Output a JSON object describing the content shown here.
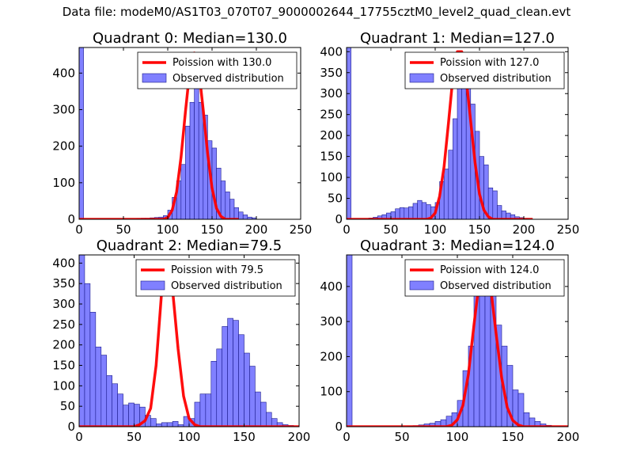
{
  "figure_title": "Data file: modeM0/AS1T03_070T07_9000002644_17755cztM0_level2_quad_clean.evt",
  "colors": {
    "bars": "#8080ff",
    "bar_edge": "#1a1a8c",
    "curve": "#ff0000",
    "axes": "#000000"
  },
  "chart_data": [
    {
      "type": "bar",
      "title": "Quadrant 0: Median=130.0",
      "xlim": [
        0,
        250
      ],
      "ylim": [
        0,
        470
      ],
      "xticks": [
        0,
        50,
        100,
        150,
        200,
        250
      ],
      "yticks": [
        0,
        100,
        200,
        300,
        400
      ],
      "bin_width": 5,
      "legend": {
        "position": "top-right",
        "curve_label": "Poission with 130.0",
        "bars_label": "Observed distribution"
      },
      "hist": [
        {
          "x": 0,
          "v": 470
        },
        {
          "x": 65,
          "v": 2
        },
        {
          "x": 70,
          "v": 3
        },
        {
          "x": 75,
          "v": 3
        },
        {
          "x": 80,
          "v": 4
        },
        {
          "x": 85,
          "v": 5
        },
        {
          "x": 90,
          "v": 6
        },
        {
          "x": 95,
          "v": 10
        },
        {
          "x": 100,
          "v": 25
        },
        {
          "x": 105,
          "v": 60
        },
        {
          "x": 110,
          "v": 105
        },
        {
          "x": 115,
          "v": 150
        },
        {
          "x": 120,
          "v": 255
        },
        {
          "x": 125,
          "v": 320
        },
        {
          "x": 130,
          "v": 440
        },
        {
          "x": 135,
          "v": 320
        },
        {
          "x": 140,
          "v": 285
        },
        {
          "x": 145,
          "v": 215
        },
        {
          "x": 150,
          "v": 195
        },
        {
          "x": 155,
          "v": 140
        },
        {
          "x": 160,
          "v": 105
        },
        {
          "x": 165,
          "v": 75
        },
        {
          "x": 170,
          "v": 55
        },
        {
          "x": 175,
          "v": 32
        },
        {
          "x": 180,
          "v": 20
        },
        {
          "x": 185,
          "v": 12
        },
        {
          "x": 190,
          "v": 6
        },
        {
          "x": 195,
          "v": 4
        }
      ],
      "curve": [
        [
          0,
          0
        ],
        [
          95,
          0
        ],
        [
          100,
          5
        ],
        [
          105,
          25
        ],
        [
          110,
          75
        ],
        [
          115,
          170
        ],
        [
          120,
          295
        ],
        [
          125,
          410
        ],
        [
          130,
          455
        ],
        [
          135,
          410
        ],
        [
          140,
          300
        ],
        [
          145,
          180
        ],
        [
          150,
          85
        ],
        [
          155,
          30
        ],
        [
          160,
          8
        ],
        [
          165,
          0
        ],
        [
          180,
          0
        ]
      ]
    },
    {
      "type": "bar",
      "title": "Quadrant 1: Median=127.0",
      "xlim": [
        0,
        250
      ],
      "ylim": [
        0,
        410
      ],
      "xticks": [
        0,
        50,
        100,
        150,
        200,
        250
      ],
      "yticks": [
        0,
        50,
        100,
        150,
        200,
        250,
        300,
        350,
        400
      ],
      "bin_width": 5,
      "legend": {
        "position": "top-right",
        "curve_label": "Poission with 127.0",
        "bars_label": "Observed distribution"
      },
      "hist": [
        {
          "x": 0,
          "v": 410
        },
        {
          "x": 25,
          "v": 3
        },
        {
          "x": 30,
          "v": 5
        },
        {
          "x": 35,
          "v": 8
        },
        {
          "x": 40,
          "v": 11
        },
        {
          "x": 45,
          "v": 15
        },
        {
          "x": 50,
          "v": 18
        },
        {
          "x": 55,
          "v": 25
        },
        {
          "x": 60,
          "v": 28
        },
        {
          "x": 65,
          "v": 27
        },
        {
          "x": 70,
          "v": 30
        },
        {
          "x": 75,
          "v": 38
        },
        {
          "x": 80,
          "v": 45
        },
        {
          "x": 85,
          "v": 40
        },
        {
          "x": 90,
          "v": 35
        },
        {
          "x": 95,
          "v": 30
        },
        {
          "x": 100,
          "v": 40
        },
        {
          "x": 105,
          "v": 90
        },
        {
          "x": 110,
          "v": 120
        },
        {
          "x": 115,
          "v": 165
        },
        {
          "x": 120,
          "v": 240
        },
        {
          "x": 125,
          "v": 335
        },
        {
          "x": 130,
          "v": 385
        },
        {
          "x": 135,
          "v": 345
        },
        {
          "x": 140,
          "v": 275
        },
        {
          "x": 145,
          "v": 210
        },
        {
          "x": 150,
          "v": 150
        },
        {
          "x": 155,
          "v": 130
        },
        {
          "x": 160,
          "v": 75
        },
        {
          "x": 165,
          "v": 68
        },
        {
          "x": 170,
          "v": 33
        },
        {
          "x": 175,
          "v": 20
        },
        {
          "x": 180,
          "v": 15
        },
        {
          "x": 185,
          "v": 11
        },
        {
          "x": 190,
          "v": 6
        },
        {
          "x": 195,
          "v": 4
        },
        {
          "x": 200,
          "v": 2
        }
      ],
      "curve": [
        [
          0,
          0
        ],
        [
          90,
          0
        ],
        [
          95,
          3
        ],
        [
          100,
          15
        ],
        [
          105,
          55
        ],
        [
          110,
          125
        ],
        [
          115,
          230
        ],
        [
          120,
          340
        ],
        [
          125,
          400
        ],
        [
          130,
          400
        ],
        [
          135,
          335
        ],
        [
          140,
          235
        ],
        [
          145,
          135
        ],
        [
          150,
          60
        ],
        [
          155,
          22
        ],
        [
          160,
          6
        ],
        [
          165,
          0
        ],
        [
          210,
          0
        ]
      ]
    },
    {
      "type": "bar",
      "title": "Quadrant 2: Median=79.5",
      "xlim": [
        0,
        200
      ],
      "ylim": [
        0,
        420
      ],
      "xticks": [
        0,
        50,
        100,
        150,
        200
      ],
      "yticks": [
        0,
        50,
        100,
        150,
        200,
        250,
        300,
        350,
        400
      ],
      "bin_width": 5,
      "legend": {
        "position": "top-right",
        "curve_label": "Poission with 79.5",
        "bars_label": "Observed distribution"
      },
      "hist": [
        {
          "x": 0,
          "v": 420
        },
        {
          "x": 5,
          "v": 350
        },
        {
          "x": 10,
          "v": 280
        },
        {
          "x": 15,
          "v": 195
        },
        {
          "x": 20,
          "v": 175
        },
        {
          "x": 25,
          "v": 125
        },
        {
          "x": 30,
          "v": 105
        },
        {
          "x": 35,
          "v": 80
        },
        {
          "x": 40,
          "v": 53
        },
        {
          "x": 45,
          "v": 58
        },
        {
          "x": 50,
          "v": 55
        },
        {
          "x": 55,
          "v": 48
        },
        {
          "x": 60,
          "v": 28
        },
        {
          "x": 65,
          "v": 20
        },
        {
          "x": 70,
          "v": 7
        },
        {
          "x": 75,
          "v": 10
        },
        {
          "x": 80,
          "v": 10
        },
        {
          "x": 85,
          "v": 13
        },
        {
          "x": 90,
          "v": 5
        },
        {
          "x": 95,
          "v": 25
        },
        {
          "x": 100,
          "v": 20
        },
        {
          "x": 105,
          "v": 60
        },
        {
          "x": 110,
          "v": 80
        },
        {
          "x": 115,
          "v": 80
        },
        {
          "x": 120,
          "v": 160
        },
        {
          "x": 125,
          "v": 190
        },
        {
          "x": 130,
          "v": 245
        },
        {
          "x": 135,
          "v": 265
        },
        {
          "x": 140,
          "v": 260
        },
        {
          "x": 145,
          "v": 225
        },
        {
          "x": 150,
          "v": 180
        },
        {
          "x": 155,
          "v": 148
        },
        {
          "x": 160,
          "v": 85
        },
        {
          "x": 165,
          "v": 60
        },
        {
          "x": 170,
          "v": 35
        },
        {
          "x": 175,
          "v": 20
        },
        {
          "x": 180,
          "v": 10
        },
        {
          "x": 185,
          "v": 5
        },
        {
          "x": 190,
          "v": 3
        }
      ],
      "curve": [
        [
          0,
          0
        ],
        [
          50,
          0
        ],
        [
          55,
          5
        ],
        [
          60,
          15
        ],
        [
          65,
          45
        ],
        [
          70,
          150
        ],
        [
          75,
          330
        ],
        [
          80,
          400
        ],
        [
          85,
          335
        ],
        [
          90,
          190
        ],
        [
          95,
          75
        ],
        [
          100,
          20
        ],
        [
          105,
          5
        ],
        [
          110,
          0
        ],
        [
          200,
          0
        ]
      ]
    },
    {
      "type": "bar",
      "title": "Quadrant 3: Median=124.0",
      "xlim": [
        0,
        200
      ],
      "ylim": [
        0,
        490
      ],
      "xticks": [
        0,
        50,
        100,
        150,
        200
      ],
      "yticks": [
        0,
        100,
        200,
        300,
        400
      ],
      "bin_width": 5,
      "legend": {
        "position": "top-right",
        "curve_label": "Poission with 124.0",
        "bars_label": "Observed distribution"
      },
      "hist": [
        {
          "x": 0,
          "v": 490
        },
        {
          "x": 55,
          "v": 2
        },
        {
          "x": 60,
          "v": 3
        },
        {
          "x": 65,
          "v": 5
        },
        {
          "x": 70,
          "v": 8
        },
        {
          "x": 75,
          "v": 10
        },
        {
          "x": 80,
          "v": 15
        },
        {
          "x": 85,
          "v": 20
        },
        {
          "x": 90,
          "v": 30
        },
        {
          "x": 95,
          "v": 40
        },
        {
          "x": 100,
          "v": 75
        },
        {
          "x": 105,
          "v": 160
        },
        {
          "x": 110,
          "v": 230
        },
        {
          "x": 115,
          "v": 390
        },
        {
          "x": 120,
          "v": 445
        },
        {
          "x": 125,
          "v": 470
        },
        {
          "x": 130,
          "v": 390
        },
        {
          "x": 135,
          "v": 290
        },
        {
          "x": 140,
          "v": 230
        },
        {
          "x": 145,
          "v": 175
        },
        {
          "x": 150,
          "v": 105
        },
        {
          "x": 155,
          "v": 95
        },
        {
          "x": 160,
          "v": 40
        },
        {
          "x": 165,
          "v": 25
        },
        {
          "x": 170,
          "v": 15
        },
        {
          "x": 175,
          "v": 8
        },
        {
          "x": 180,
          "v": 4
        }
      ],
      "curve": [
        [
          0,
          0
        ],
        [
          90,
          0
        ],
        [
          95,
          4
        ],
        [
          100,
          20
        ],
        [
          105,
          60
        ],
        [
          110,
          150
        ],
        [
          115,
          290
        ],
        [
          120,
          420
        ],
        [
          125,
          460
        ],
        [
          130,
          400
        ],
        [
          135,
          265
        ],
        [
          140,
          140
        ],
        [
          145,
          55
        ],
        [
          150,
          18
        ],
        [
          155,
          5
        ],
        [
          160,
          0
        ],
        [
          200,
          0
        ]
      ]
    }
  ]
}
